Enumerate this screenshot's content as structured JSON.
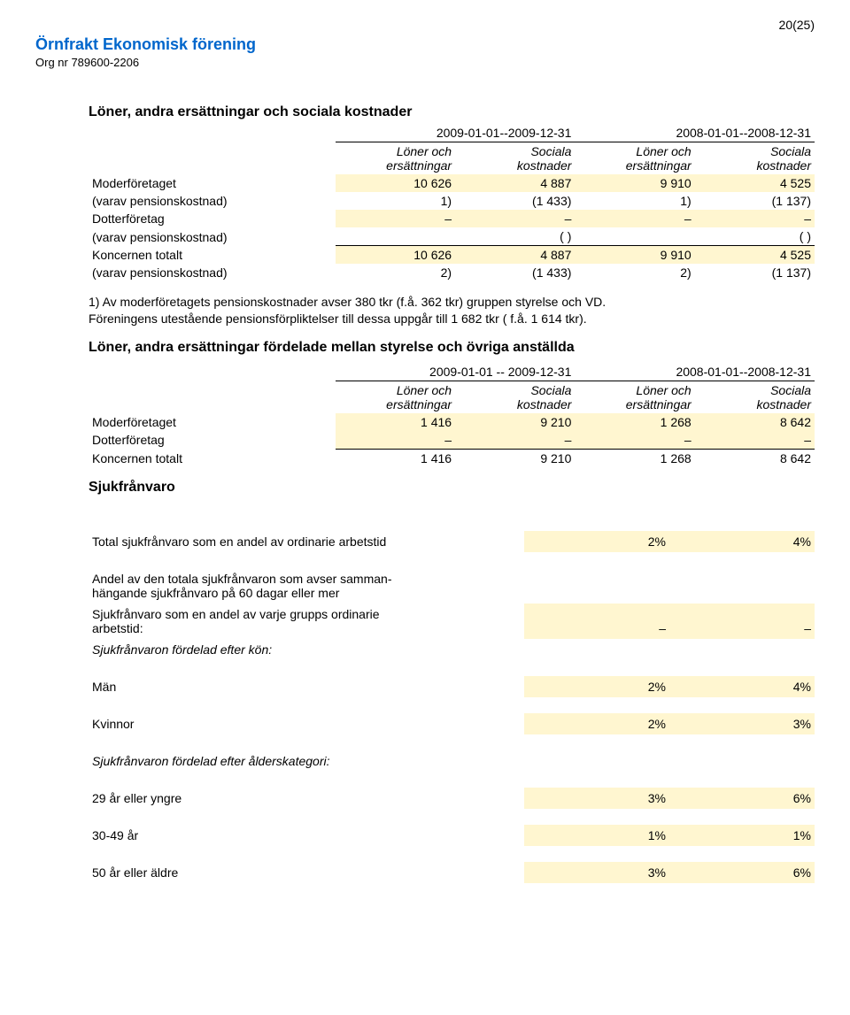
{
  "page_number": "20(25)",
  "header": {
    "title": "Örnfrakt Ekonomisk förening",
    "sub": "Org nr 789600-2206"
  },
  "colors": {
    "highlight": "#fff6d0",
    "link_blue": "#0066cc",
    "text": "#000000",
    "bg": "#ffffff",
    "border": "#000000"
  },
  "section1": {
    "title": "Löner, andra ersättningar och sociala kostnader",
    "periods": [
      "2009-01-01--2009-12-31",
      "2008-01-01--2008-12-31"
    ],
    "col_headers": {
      "loner": "Löner och\nersättningar",
      "sociala": "Sociala\nkostnader"
    },
    "rows": {
      "moder": {
        "label": "Moderföretaget",
        "v": [
          "10 626",
          "4 887",
          "9 910",
          "4 525"
        ]
      },
      "moder_sub": {
        "label": "(varav pensionskostnad)",
        "v": [
          "1)",
          "(1 433)",
          "1)",
          "(1 137)"
        ]
      },
      "dotter": {
        "label": "Dotterföretag",
        "v": [
          "–",
          "–",
          "–",
          "–"
        ]
      },
      "dotter_sub": {
        "label": "(varav pensionskostnad)",
        "v": [
          "",
          "(  )",
          "",
          "(  )"
        ]
      },
      "koncern": {
        "label": "Koncernen totalt",
        "v": [
          "10 626",
          "4 887",
          "9 910",
          "4 525"
        ]
      },
      "koncern_sub": {
        "label": "(varav pensionskostnad)",
        "v": [
          "2)",
          "(1 433)",
          "2)",
          "(1 137)"
        ]
      }
    },
    "note1": "1) Av moderföretagets pensionskostnader avser 380 tkr (f.å. 362 tkr) gruppen styrelse och VD.",
    "note2": "Föreningens utestående pensionsförpliktelser till dessa uppgår till 1 682 tkr ( f.å. 1 614 tkr)."
  },
  "section2": {
    "title": "Löner, andra ersättningar fördelade mellan styrelse och övriga anställda",
    "periods": [
      "2009-01-01 -- 2009-12-31",
      "2008-01-01--2008-12-31"
    ],
    "rows": {
      "moder": {
        "label": "Moderföretaget",
        "v": [
          "1 416",
          "9 210",
          "1 268",
          "8 642"
        ]
      },
      "dotter": {
        "label": "Dotterföretag",
        "v": [
          "–",
          "–",
          "–",
          "–"
        ]
      },
      "koncern": {
        "label": "Koncernen totalt",
        "v": [
          "1 416",
          "9 210",
          "1 268",
          "8 642"
        ]
      }
    }
  },
  "sjuk": {
    "title": "Sjukfrånvaro",
    "rows": [
      {
        "label": "Total sjukfrånvaro som en andel av ordinarie arbetstid",
        "v1": "2%",
        "v2": "4%",
        "hl": true,
        "gap_after": true
      },
      {
        "label": "Andel av den totala sjukfrånvaron som avser samman-\nhängande sjukfrånvaro på 60 dagar eller mer",
        "v1": "",
        "v2": "",
        "hl": false
      },
      {
        "label": "Sjukfrånvaro som en andel av varje grupps ordinarie\narbetstid:",
        "v1": "–",
        "v2": "–",
        "hl": true
      },
      {
        "label": "Sjukfrånvaron fördelad efter kön:",
        "v1": "",
        "v2": "",
        "hl": false,
        "italic": true,
        "gap_after": true
      },
      {
        "label": "Män",
        "v1": "2%",
        "v2": "4%",
        "hl": true,
        "gap_after": true
      },
      {
        "label": "Kvinnor",
        "v1": "2%",
        "v2": "3%",
        "hl": true,
        "gap_after": true
      },
      {
        "label": "Sjukfrånvaron fördelad efter ålderskategori:",
        "v1": "",
        "v2": "",
        "hl": false,
        "italic": true,
        "gap_after": true
      },
      {
        "label": "29 år eller yngre",
        "v1": "3%",
        "v2": "6%",
        "hl": true,
        "gap_after": true
      },
      {
        "label": "30-49 år",
        "v1": "1%",
        "v2": "1%",
        "hl": true,
        "gap_after": true
      },
      {
        "label": "50 år eller äldre",
        "v1": "3%",
        "v2": "6%",
        "hl": true
      }
    ]
  }
}
